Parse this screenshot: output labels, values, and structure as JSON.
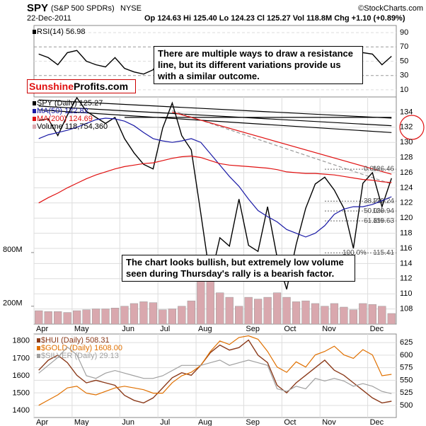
{
  "header": {
    "symbol": "SPY",
    "name": "(S&P 500 SPDRs)",
    "exchange": "NYSE",
    "date": "22-Dec-2011",
    "quote": "Op 124.63 Hi 125.40 Lo 124.23 Cl 125.27 Vol 118.8M Chg +1.10 (+0.89%)",
    "credit": "©StockCharts.com"
  },
  "logo": {
    "part1": "Sunshine",
    "part2": "Profits.com"
  },
  "annotations": [
    "There are multiple ways to draw a resistance line, but its different variations provide us with a similar outcome.",
    "The chart looks bullish, but extremely low volume seen during Thursday's rally is a bearish factor."
  ],
  "chart_data": [
    {
      "type": "line",
      "ylim": [
        0,
        100
      ],
      "yticks": [
        10,
        30,
        50,
        70,
        90
      ],
      "grid": true,
      "series": [
        {
          "name": "RSI(14) 56.98",
          "color": "#000000",
          "values": [
            60,
            55,
            45,
            62,
            65,
            50,
            45,
            42,
            55,
            40,
            35,
            32,
            38,
            62,
            68,
            45,
            38,
            25,
            22,
            45,
            42,
            55,
            40,
            42,
            58,
            38,
            32,
            55,
            65,
            68,
            62,
            55,
            50,
            38,
            62,
            60,
            45,
            56.98
          ]
        }
      ]
    },
    {
      "type": "line",
      "ylim": [
        106,
        136
      ],
      "yticks": [
        108,
        110,
        112,
        114,
        116,
        118,
        120,
        122,
        124,
        126,
        128,
        130,
        132,
        134
      ],
      "grid": true,
      "categories": [
        "Apr",
        null,
        null,
        null,
        "May",
        null,
        null,
        null,
        null,
        "Jun",
        null,
        null,
        null,
        "Jul",
        null,
        null,
        null,
        "Aug",
        null,
        null,
        null,
        null,
        "Sep",
        null,
        null,
        null,
        "Oct",
        null,
        null,
        null,
        "Nov",
        null,
        null,
        null,
        null,
        "Dec",
        null,
        null
      ],
      "series": [
        {
          "name": "SPY (Daily) 125.27",
          "color": "#000000",
          "values": [
            132.9,
            133.1,
            130.9,
            133.6,
            135.9,
            134.1,
            133.3,
            132.5,
            133.3,
            130.5,
            128.6,
            127.1,
            126.5,
            131.9,
            135.2,
            130.9,
            129.0,
            120.6,
            111.9,
            117.4,
            116.3,
            122.5,
            116.4,
            115.6,
            121.5,
            114.8,
            110.6,
            116.5,
            121.3,
            124.5,
            125.4,
            123.7,
            121.3,
            116.0,
            124.6,
            126.0,
            121.5,
            125.27
          ]
        },
        {
          "name": "MA(50) 122.82",
          "color": "#1a1aa6",
          "values": [
            130.5,
            131,
            131.3,
            131.6,
            132,
            132.5,
            133,
            133.2,
            133.1,
            132.8,
            132.2,
            131.3,
            130.5,
            130.2,
            130,
            130.2,
            130.5,
            130,
            128.5,
            127,
            125.5,
            124.2,
            122.5,
            121,
            120.2,
            119.5,
            118.5,
            118,
            117.5,
            118,
            119,
            120.5,
            121.2,
            121.5,
            121.5,
            121.8,
            122.3,
            122.82
          ]
        },
        {
          "name": "MA(200) 124.69",
          "color": "#e01010",
          "values": [
            122,
            122.7,
            123.3,
            124,
            124.6,
            125.2,
            125.7,
            126.1,
            126.5,
            126.8,
            127,
            127.2,
            127.3,
            127.6,
            127.9,
            128.1,
            128.2,
            128,
            127.6,
            127.2,
            127,
            126.9,
            126.8,
            126.7,
            126.6,
            126.4,
            126.1,
            126,
            125.9,
            125.9,
            125.8,
            125.7,
            125.5,
            125.3,
            125.1,
            125,
            124.8,
            124.69
          ]
        },
        {
          "name": "Volume 118,754,360",
          "color": "#d9a8ae",
          "axis": "vol",
          "type": "bar",
          "values": [
            150,
            140,
            140,
            130,
            150,
            160,
            170,
            170,
            180,
            200,
            230,
            250,
            240,
            160,
            170,
            200,
            260,
            500,
            560,
            350,
            300,
            200,
            300,
            280,
            300,
            350,
            300,
            250,
            260,
            230,
            200,
            230,
            190,
            160,
            230,
            220,
            200,
            118.75
          ]
        }
      ],
      "vollim": [
        0,
        800
      ],
      "volticks": [
        {
          "value": 200,
          "label": "200M"
        },
        {
          "value": 800,
          "label": "800M"
        }
      ],
      "trendlines": [
        {
          "color": "#000000",
          "dashed": false,
          "x": [
            0,
            37
          ],
          "y": [
            135.6,
            133.2
          ]
        },
        {
          "color": "#000000",
          "dashed": false,
          "x": [
            0,
            37
          ],
          "y": [
            134.8,
            132.2
          ]
        },
        {
          "color": "#000000",
          "dashed": false,
          "x": [
            0,
            37
          ],
          "y": [
            134.3,
            131.3
          ]
        },
        {
          "color": "#000000",
          "dashed": false,
          "x": [
            9,
            37
          ],
          "y": [
            133.3,
            133.3
          ]
        },
        {
          "color": "#999999",
          "dashed": true,
          "x": [
            14,
            37
          ],
          "y": [
            134.2,
            124.5
          ]
        },
        {
          "color": "#e01010",
          "dashed": false,
          "x": [
            14,
            37
          ],
          "y": [
            134.0,
            125.8
          ]
        }
      ],
      "fib": [
        {
          "label": "0.0%",
          "value": 126.46
        },
        {
          "label": "38.2%",
          "value": 122.24
        },
        {
          "label": "50.0%",
          "value": 120.94
        },
        {
          "label": "61.8%",
          "value": 119.63
        },
        {
          "label": "100.0%",
          "value": 115.41
        }
      ]
    },
    {
      "type": "line",
      "ylim": [
        1360,
        1840
      ],
      "yticks": [
        1400,
        1500,
        1600,
        1700,
        1800
      ],
      "y2lim": [
        476,
        642
      ],
      "y2ticks": [
        500,
        525,
        550,
        575,
        600,
        625
      ],
      "y3lim": [
        20,
        52
      ],
      "grid": true,
      "categories": [
        "Apr",
        null,
        null,
        null,
        "May",
        null,
        null,
        null,
        null,
        "Jun",
        null,
        null,
        null,
        "Jul",
        null,
        null,
        null,
        "Aug",
        null,
        null,
        null,
        null,
        "Sep",
        null,
        null,
        null,
        "Oct",
        null,
        null,
        null,
        "Nov",
        null,
        null,
        null,
        null,
        "Dec",
        null,
        null
      ],
      "series": [
        {
          "name": "$HUI (Daily) 508.31",
          "color": "#8b3a1a",
          "axis": "y2",
          "values": [
            570,
            590,
            600,
            585,
            560,
            545,
            550,
            545,
            540,
            520,
            510,
            505,
            515,
            535,
            555,
            565,
            560,
            580,
            605,
            620,
            610,
            615,
            630,
            600,
            585,
            540,
            525,
            545,
            560,
            575,
            590,
            570,
            560,
            545,
            530,
            515,
            505,
            508.31
          ]
        },
        {
          "name": "$GOLD (Daily) 1608.00",
          "color": "#e07000",
          "values": [
            1430,
            1460,
            1490,
            1530,
            1540,
            1500,
            1490,
            1510,
            1530,
            1540,
            1530,
            1520,
            1500,
            1500,
            1560,
            1600,
            1620,
            1660,
            1740,
            1800,
            1780,
            1820,
            1830,
            1810,
            1740,
            1650,
            1620,
            1680,
            1650,
            1720,
            1740,
            1770,
            1720,
            1700,
            1750,
            1720,
            1600,
            1608
          ]
        },
        {
          "name": "$SILVER (Daily) 29.13",
          "color": "#a0a0a0",
          "axis": "y3",
          "values": [
            37,
            40,
            43,
            47,
            44,
            36,
            35,
            37,
            38,
            37,
            36,
            35,
            35,
            36,
            38,
            40,
            40,
            40,
            41,
            42,
            40,
            41,
            42,
            41,
            40,
            31,
            30,
            32,
            31,
            35,
            34,
            35,
            34,
            32,
            33,
            32,
            30,
            29.13
          ]
        }
      ]
    }
  ]
}
